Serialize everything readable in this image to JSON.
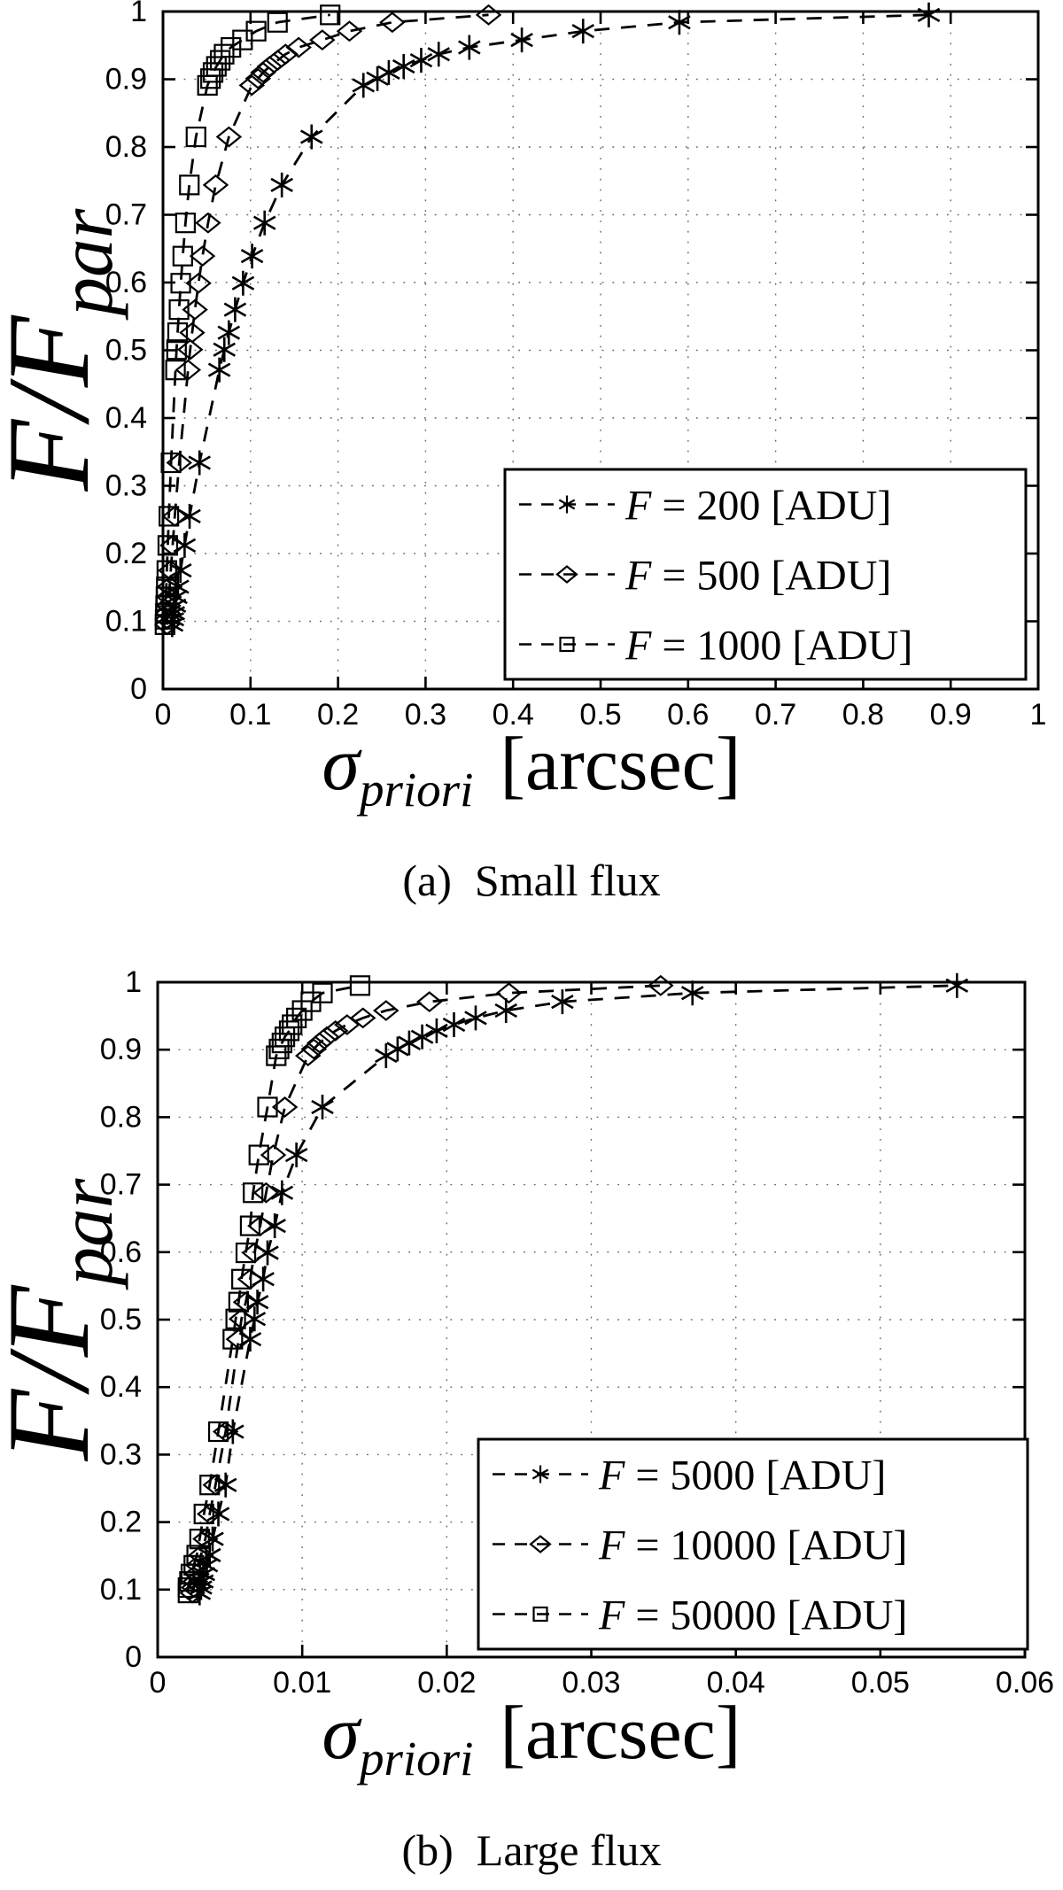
{
  "page": {
    "background": "#ffffff",
    "ink": "#000000",
    "grid_color": "#666666"
  },
  "chart_data": [
    {
      "id": "a",
      "type": "line",
      "caption_index": "(a)",
      "caption_text": "Small flux",
      "xlabel": {
        "symbol": "σ",
        "subscript": "priori",
        "unit": "[arcsec]"
      },
      "ylabel": {
        "numerator": "F/F",
        "subscript": "par"
      },
      "xlim": [
        0,
        1
      ],
      "ylim": [
        0,
        1
      ],
      "grid": "dotted",
      "legend_location": "lower-right",
      "xticks": {
        "values": [
          0,
          0.1,
          0.2,
          0.3,
          0.4,
          0.5,
          0.6,
          0.7,
          0.8,
          0.9,
          1
        ],
        "labels": [
          "0",
          "0.1",
          "0.2",
          "0.3",
          "0.4",
          "0.5",
          "0.6",
          "0.7",
          "0.8",
          "0.9",
          "1"
        ]
      },
      "yticks": {
        "values": [
          0,
          0.1,
          0.2,
          0.3,
          0.4,
          0.5,
          0.6,
          0.7,
          0.8,
          0.9,
          1
        ],
        "labels": [
          "0",
          "0.1",
          "0.2",
          "0.3",
          "0.4",
          "0.5",
          "0.6",
          "0.7",
          "0.8",
          "0.9",
          "1"
        ]
      },
      "y_values": [
        0.095,
        0.103,
        0.112,
        0.123,
        0.136,
        0.151,
        0.175,
        0.212,
        0.255,
        0.334,
        0.471,
        0.501,
        0.526,
        0.56,
        0.599,
        0.639,
        0.688,
        0.744,
        0.815,
        0.891,
        0.901,
        0.91,
        0.919,
        0.928,
        0.937,
        0.947,
        0.958,
        0.971,
        0.984,
        0.995
      ],
      "series": [
        {
          "label": "F = 200 [ADU]",
          "flux_adu": 200,
          "marker": "asterisk",
          "linestyle": "dashed",
          "color": "#000000",
          "x": [
            0.0105,
            0.0114,
            0.0124,
            0.0137,
            0.0153,
            0.0171,
            0.02,
            0.0247,
            0.0304,
            0.0417,
            0.0644,
            0.0701,
            0.0752,
            0.0824,
            0.0915,
            0.1018,
            0.1161,
            0.1358,
            0.1698,
            0.229,
            0.245,
            0.258,
            0.275,
            0.295,
            0.315,
            0.35,
            0.41,
            0.48,
            0.59,
            0.875
          ]
        },
        {
          "label": "F = 500 [ADU]",
          "flux_adu": 500,
          "marker": "diamond",
          "linestyle": "dashed",
          "color": "#000000",
          "x": [
            0.0047,
            0.0051,
            0.0055,
            0.0061,
            0.0068,
            0.0076,
            0.0089,
            0.011,
            0.0135,
            0.0185,
            0.0286,
            0.0311,
            0.0333,
            0.0365,
            0.0406,
            0.0451,
            0.0515,
            0.0602,
            0.0753,
            0.1015,
            0.1086,
            0.1144,
            0.1219,
            0.131,
            0.14,
            0.155,
            0.182,
            0.213,
            0.262,
            0.372
          ]
        },
        {
          "label": "F = 1000 [ADU]",
          "flux_adu": 1000,
          "marker": "square",
          "linestyle": "dashed",
          "color": "#000000",
          "x": [
            0.0023,
            0.0025,
            0.0028,
            0.003,
            0.0034,
            0.0038,
            0.0044,
            0.0055,
            0.0067,
            0.0092,
            0.0143,
            0.0155,
            0.0167,
            0.0183,
            0.0203,
            0.0226,
            0.0257,
            0.0301,
            0.0377,
            0.0508,
            0.0543,
            0.0572,
            0.061,
            0.0654,
            0.0698,
            0.0776,
            0.0909,
            0.1064,
            0.1308,
            0.191
          ]
        }
      ]
    },
    {
      "id": "b",
      "type": "line",
      "caption_index": "(b)",
      "caption_text": "Large flux",
      "xlabel": {
        "symbol": "σ",
        "subscript": "priori",
        "unit": "[arcsec]"
      },
      "ylabel": {
        "numerator": "F/F",
        "subscript": "par"
      },
      "xlim": [
        0,
        0.06
      ],
      "ylim": [
        0,
        1
      ],
      "grid": "dotted",
      "legend_location": "lower-right",
      "xticks": {
        "values": [
          0,
          0.01,
          0.02,
          0.03,
          0.04,
          0.05,
          0.06
        ],
        "labels": [
          "0",
          "0.01",
          "0.02",
          "0.03",
          "0.04",
          "0.05",
          "0.06"
        ]
      },
      "yticks": {
        "values": [
          0,
          0.1,
          0.2,
          0.3,
          0.4,
          0.5,
          0.6,
          0.7,
          0.8,
          0.9,
          1
        ],
        "labels": [
          "0",
          "0.1",
          "0.2",
          "0.3",
          "0.4",
          "0.5",
          "0.6",
          "0.7",
          "0.8",
          "0.9",
          "1"
        ]
      },
      "y_values": [
        0.095,
        0.103,
        0.112,
        0.123,
        0.136,
        0.151,
        0.175,
        0.212,
        0.255,
        0.334,
        0.471,
        0.501,
        0.526,
        0.56,
        0.599,
        0.639,
        0.688,
        0.744,
        0.815,
        0.891,
        0.901,
        0.91,
        0.919,
        0.928,
        0.937,
        0.947,
        0.958,
        0.971,
        0.984,
        0.995
      ],
      "series": [
        {
          "label": "F = 5000 [ADU]",
          "flux_adu": 5000,
          "marker": "asterisk",
          "linestyle": "dashed",
          "color": "#000000",
          "x": [
            0.0029,
            0.003,
            0.0031,
            0.0032,
            0.0034,
            0.0036,
            0.0038,
            0.0042,
            0.0047,
            0.0052,
            0.0064,
            0.0067,
            0.0069,
            0.0073,
            0.0076,
            0.0081,
            0.0086,
            0.0096,
            0.0114,
            0.0158,
            0.0166,
            0.0174,
            0.0183,
            0.0193,
            0.0205,
            0.022,
            0.0241,
            0.028,
            0.037,
            0.0553
          ]
        },
        {
          "label": "F = 10000 [ADU]",
          "flux_adu": 10000,
          "marker": "diamond",
          "linestyle": "dashed",
          "color": "#000000",
          "x": [
            0.0024,
            0.0025,
            0.0026,
            0.0027,
            0.0028,
            0.003,
            0.0033,
            0.0036,
            0.004,
            0.0047,
            0.0056,
            0.0058,
            0.0061,
            0.0064,
            0.0067,
            0.0071,
            0.0075,
            0.008,
            0.0088,
            0.0104,
            0.0108,
            0.0112,
            0.0117,
            0.0123,
            0.0131,
            0.0142,
            0.0158,
            0.0188,
            0.0243,
            0.0348
          ]
        },
        {
          "label": "F = 50000 [ADU]",
          "flux_adu": 50000,
          "marker": "square",
          "linestyle": "dashed",
          "color": "#000000",
          "x": [
            0.0021,
            0.0021,
            0.0022,
            0.0023,
            0.0025,
            0.0027,
            0.0029,
            0.0032,
            0.0036,
            0.0042,
            0.0052,
            0.0054,
            0.0056,
            0.0058,
            0.0061,
            0.0064,
            0.0066,
            0.007,
            0.0076,
            0.0082,
            0.0084,
            0.0086,
            0.0088,
            0.0091,
            0.0093,
            0.0096,
            0.01,
            0.0106,
            0.0114,
            0.014
          ]
        }
      ]
    }
  ]
}
